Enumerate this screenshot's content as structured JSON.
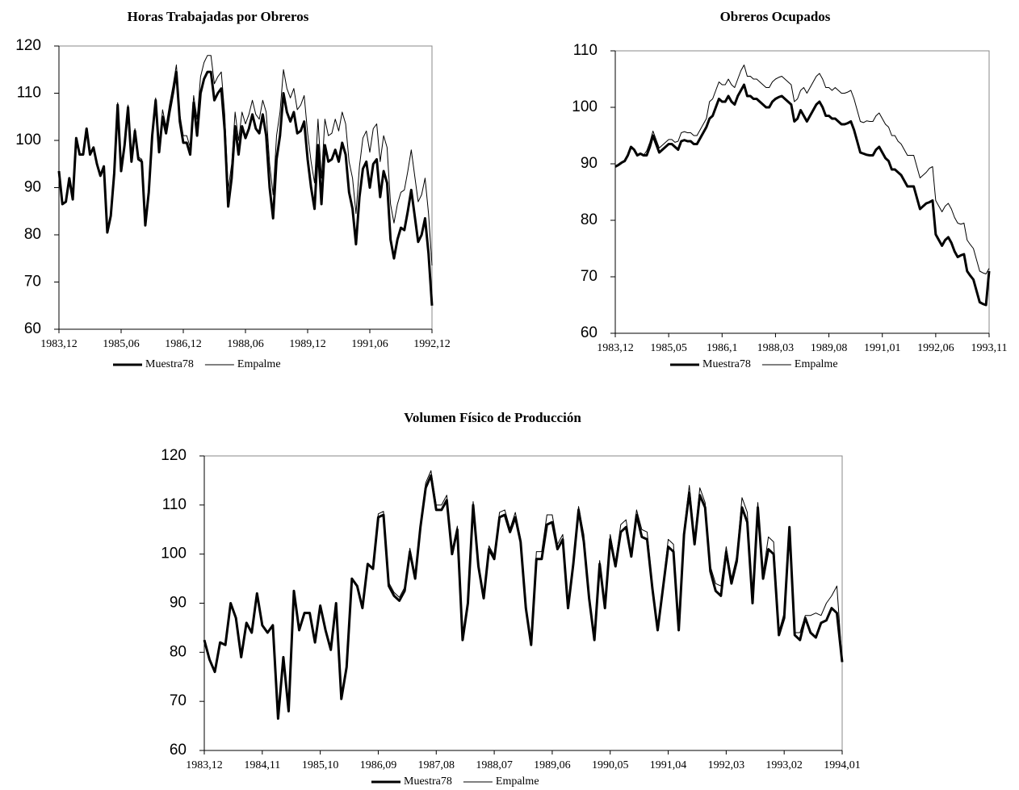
{
  "chart_data": [
    {
      "type": "line",
      "title": "Horas Trabajadas por Obreros",
      "categories": [
        "1983,12",
        null,
        null,
        null,
        null,
        null,
        null,
        null,
        null,
        null,
        null,
        null,
        null,
        null,
        null,
        null,
        null,
        null,
        "1985,06",
        null,
        null,
        null,
        null,
        null,
        null,
        null,
        null,
        null,
        null,
        null,
        null,
        null,
        null,
        null,
        null,
        null,
        "1986,12",
        null,
        null,
        null,
        null,
        null,
        null,
        null,
        null,
        null,
        null,
        null,
        null,
        null,
        null,
        null,
        null,
        null,
        "1988,06",
        null,
        null,
        null,
        null,
        null,
        null,
        null,
        null,
        null,
        null,
        null,
        null,
        null,
        null,
        null,
        null,
        null,
        "1989,12",
        null,
        null,
        null,
        null,
        null,
        null,
        null,
        null,
        null,
        null,
        null,
        null,
        null,
        null,
        null,
        null,
        null,
        "1991,06",
        null,
        null,
        null,
        null,
        null,
        null,
        null,
        null,
        null,
        null,
        null,
        null,
        null,
        null,
        null,
        null,
        null,
        "1992,12"
      ],
      "series": [
        {
          "name": "Muestra78",
          "color": "#000000",
          "width": 3,
          "values": [
            93.5,
            86.5,
            87,
            92,
            87.5,
            100.5,
            97,
            97,
            102.5,
            97,
            98.5,
            95,
            92.5,
            94.5,
            80.5,
            84,
            93,
            107.5,
            93.5,
            99,
            107,
            95.5,
            102,
            96,
            95.5,
            82,
            89,
            101,
            108.5,
            97.5,
            105,
            101.5,
            106,
            110,
            114.5,
            104,
            99.5,
            99.5,
            97,
            108,
            101,
            110,
            113,
            114.5,
            114.5,
            108.5,
            110,
            111,
            102,
            86,
            92,
            103,
            97,
            103,
            100.5,
            102.5,
            105.5,
            102.5,
            101.5,
            105.5,
            101,
            90,
            83.5,
            96,
            101,
            110,
            106,
            104,
            106,
            101.5,
            102,
            104,
            96,
            90,
            85.5,
            99,
            86.5,
            99,
            95.5,
            96,
            98,
            95.5,
            99.5,
            97,
            89,
            85.5,
            78,
            88,
            94,
            95.5,
            90,
            95,
            96,
            88,
            93.5,
            91,
            79,
            75,
            79,
            81.5,
            81,
            85,
            89.5,
            84,
            78.5,
            80,
            83.5,
            76,
            65
          ]
        },
        {
          "name": "Empalme",
          "color": "#000000",
          "width": 1,
          "values": [
            93.5,
            86.5,
            87,
            92,
            87.5,
            100.5,
            97,
            97,
            102.5,
            97,
            98.5,
            95,
            92.5,
            94.5,
            80.5,
            84,
            93.5,
            108,
            94,
            99.5,
            107.5,
            96,
            102.5,
            96.5,
            96,
            82.5,
            89.5,
            101.5,
            109,
            98,
            106.5,
            103,
            107.5,
            111.5,
            116,
            105.5,
            101,
            101,
            98.5,
            109.5,
            104.5,
            113.5,
            116.5,
            118,
            118,
            112,
            113.5,
            114.5,
            105.5,
            89.5,
            95,
            106,
            100,
            106,
            103.5,
            105.5,
            108.5,
            105.5,
            104.5,
            108.5,
            106,
            95,
            88.5,
            101,
            106,
            115,
            111,
            109,
            111,
            106.5,
            107.5,
            109.5,
            101.5,
            95.5,
            91,
            104.5,
            92,
            104.5,
            101,
            101.5,
            104.5,
            102,
            106,
            103.5,
            95.5,
            92,
            84.5,
            94.5,
            100.5,
            102,
            97.5,
            102.5,
            103.5,
            95.5,
            101,
            98.5,
            86.5,
            82.5,
            86.5,
            89,
            89.5,
            93.5,
            98,
            92.5,
            87,
            88.5,
            92,
            84.5,
            73.5
          ]
        }
      ],
      "ylim": [
        60,
        120
      ],
      "yticks": [
        60,
        70,
        80,
        90,
        100,
        110,
        120
      ],
      "grid": false,
      "legend": "bottom"
    },
    {
      "type": "line",
      "title": "Obreros Ocupados",
      "categories": [
        "1983,12",
        null,
        null,
        null,
        null,
        null,
        null,
        null,
        null,
        null,
        null,
        null,
        null,
        null,
        null,
        null,
        null,
        "1985,05",
        null,
        null,
        null,
        null,
        null,
        null,
        null,
        null,
        null,
        null,
        null,
        null,
        null,
        null,
        null,
        null,
        "1986,1",
        null,
        null,
        null,
        null,
        null,
        null,
        null,
        null,
        null,
        null,
        null,
        null,
        null,
        null,
        null,
        null,
        "1988,03",
        null,
        null,
        null,
        null,
        null,
        null,
        null,
        null,
        null,
        null,
        null,
        null,
        null,
        null,
        null,
        null,
        "1989,08",
        null,
        null,
        null,
        null,
        null,
        null,
        null,
        null,
        null,
        null,
        null,
        null,
        null,
        null,
        null,
        null,
        "1991,01",
        null,
        null,
        null,
        null,
        null,
        null,
        null,
        null,
        null,
        null,
        null,
        null,
        null,
        null,
        null,
        null,
        "1992,06",
        null,
        null,
        null,
        null,
        null,
        null,
        null,
        null,
        null,
        null,
        null,
        null,
        null,
        null,
        null,
        null,
        "1993,11"
      ],
      "series": [
        {
          "name": "Muestra78",
          "color": "#000000",
          "width": 3,
          "values": [
            89.5,
            89.8,
            90.2,
            90.5,
            91.5,
            93,
            92.5,
            91.5,
            91.8,
            91.5,
            91.5,
            93,
            95,
            93.5,
            92,
            92.5,
            93,
            93.5,
            93.5,
            93,
            92.5,
            94,
            94.2,
            94,
            94,
            93.5,
            93.5,
            94.5,
            95.5,
            96.5,
            98,
            98.5,
            100,
            101.5,
            101,
            101,
            102,
            101,
            100.5,
            102,
            103,
            104,
            102,
            102,
            101.5,
            101.5,
            101,
            100.5,
            100,
            100,
            101,
            101.5,
            101.8,
            102,
            101.5,
            101,
            100.5,
            97.5,
            98,
            99.5,
            98.5,
            97.5,
            98.5,
            99.5,
            100.5,
            101,
            100,
            98.5,
            98.5,
            98,
            98,
            97.5,
            97,
            97,
            97.2,
            97.5,
            96,
            94,
            92,
            91.8,
            91.6,
            91.5,
            91.5,
            92.5,
            93,
            92,
            91,
            90.5,
            89,
            89,
            88.5,
            88,
            87,
            86,
            86,
            86,
            84,
            82,
            82.5,
            83,
            83.2,
            83.5,
            77.5,
            76.5,
            75.5,
            76.5,
            77,
            76,
            74.5,
            73.5,
            73.8,
            74,
            71,
            70.2,
            69.5,
            67.5,
            65.5,
            65.2,
            65,
            71
          ]
        },
        {
          "name": "Empalme",
          "color": "#000000",
          "width": 1,
          "values": [
            89.5,
            89.8,
            90.2,
            90.5,
            91.5,
            93,
            92.5,
            91.5,
            91.8,
            91.5,
            92.3,
            93.8,
            95.8,
            94.3,
            92.8,
            93.3,
            93.8,
            94.3,
            94.3,
            93.8,
            94,
            95.5,
            95.7,
            95.5,
            95.5,
            95,
            95,
            96,
            97,
            98,
            101,
            101.5,
            103,
            104.5,
            104,
            104,
            105,
            104,
            103.5,
            105,
            106.5,
            107.5,
            105.5,
            105.5,
            105,
            105,
            104.5,
            104,
            103.5,
            103.5,
            104.5,
            105,
            105.3,
            105.5,
            105,
            104.5,
            104,
            101,
            101.5,
            103,
            103.5,
            102.5,
            103.5,
            104.5,
            105.5,
            106,
            105,
            103.5,
            103.5,
            103,
            103.5,
            103,
            102.5,
            102.5,
            102.7,
            103,
            101.5,
            99.5,
            97.5,
            97.3,
            97.6,
            97.5,
            97.5,
            98.5,
            99,
            98,
            97,
            96.5,
            95,
            95,
            94,
            93.5,
            92.5,
            91.5,
            91.5,
            91.5,
            89.5,
            87.5,
            88,
            88.5,
            89.2,
            89.5,
            83.5,
            82.5,
            81.5,
            82.5,
            83,
            82,
            80.5,
            79.5,
            79.3,
            79.5,
            76.5,
            75.7,
            75,
            73,
            71,
            70.7,
            70.5,
            71.5
          ]
        }
      ],
      "ylim": [
        60,
        110
      ],
      "yticks": [
        60,
        70,
        80,
        90,
        100,
        110
      ],
      "grid": false,
      "legend": "bottom"
    },
    {
      "type": "line",
      "title": "Volumen Físico de Producción",
      "categories": [
        "1983,12",
        null,
        null,
        null,
        null,
        null,
        null,
        null,
        null,
        null,
        null,
        "1984,11",
        null,
        null,
        null,
        null,
        null,
        null,
        null,
        null,
        null,
        null,
        "1985,10",
        null,
        null,
        null,
        null,
        null,
        null,
        null,
        null,
        null,
        null,
        "1986,09",
        null,
        null,
        null,
        null,
        null,
        null,
        null,
        null,
        null,
        null,
        "1987,08",
        null,
        null,
        null,
        null,
        null,
        null,
        null,
        null,
        null,
        null,
        "1988,07",
        null,
        null,
        null,
        null,
        null,
        null,
        null,
        null,
        null,
        null,
        "1989,06",
        null,
        null,
        null,
        null,
        null,
        null,
        null,
        null,
        null,
        null,
        "1990,05",
        null,
        null,
        null,
        null,
        null,
        null,
        null,
        null,
        null,
        null,
        "1991,04",
        null,
        null,
        null,
        null,
        null,
        null,
        null,
        null,
        null,
        null,
        "1992,03",
        null,
        null,
        null,
        null,
        null,
        null,
        null,
        null,
        null,
        null,
        "1993,02",
        null,
        null,
        null,
        null,
        null,
        null,
        null,
        null,
        null,
        null,
        "1994,01"
      ],
      "series": [
        {
          "name": "Muestra78",
          "color": "#000000",
          "width": 3,
          "values": [
            82.5,
            78.5,
            76,
            82,
            81.5,
            90,
            87,
            79,
            86,
            84,
            92,
            85.5,
            84,
            85.5,
            66.5,
            79,
            68,
            92.5,
            84.5,
            88,
            88,
            82,
            89.5,
            84.5,
            80.5,
            90,
            70.5,
            77,
            95,
            93.5,
            89,
            98,
            97,
            107.5,
            108,
            93.5,
            91.5,
            90.5,
            92.5,
            100.5,
            95,
            105.5,
            113.5,
            116,
            109,
            109,
            111,
            100,
            105,
            82.5,
            90,
            110,
            97.5,
            91,
            101,
            99,
            107.5,
            108,
            104.5,
            107.5,
            102.5,
            89,
            81.5,
            99,
            99,
            106,
            106.5,
            101,
            103,
            89,
            98,
            109,
            102.5,
            91,
            82.5,
            98,
            89,
            103,
            97.5,
            104.5,
            105.5,
            99.5,
            108,
            103.5,
            103,
            93,
            84.5,
            93,
            101.5,
            100.5,
            84.5,
            104,
            112.5,
            102,
            112,
            109.5,
            96.5,
            92.5,
            91.5,
            100.5,
            94,
            98.5,
            109.5,
            106.5,
            90,
            109.5,
            95,
            101,
            100,
            83.5,
            87,
            105.5,
            83.5,
            82.5,
            87,
            84,
            83,
            86,
            86.5,
            89,
            88,
            78
          ]
        },
        {
          "name": "Empalme",
          "color": "#000000",
          "width": 1,
          "values": [
            82.5,
            78.5,
            76,
            82,
            81.5,
            90,
            87,
            79,
            86,
            84,
            92,
            85.5,
            84,
            85.5,
            66.5,
            79,
            68,
            92.5,
            84.5,
            88,
            88,
            82,
            89.5,
            84.5,
            80.5,
            90,
            70.5,
            77,
            95,
            93.5,
            89,
            98,
            97,
            108.2,
            108.7,
            94.2,
            92.2,
            91.2,
            93.2,
            101.2,
            95.7,
            106.2,
            114.5,
            117,
            110,
            110,
            112,
            100.7,
            105.7,
            83.2,
            90.7,
            110.7,
            98.2,
            91.7,
            101.7,
            99.7,
            108.5,
            109,
            105.2,
            108.5,
            103.2,
            89.7,
            82.2,
            100.5,
            100.5,
            108,
            108,
            102,
            104,
            89.7,
            98.7,
            109.7,
            104,
            91.7,
            83.2,
            98.7,
            89.7,
            104,
            98.2,
            106,
            107,
            100.2,
            109,
            105,
            104.5,
            94,
            85.2,
            93.7,
            103,
            102,
            85.2,
            105,
            114,
            103,
            113.5,
            110.5,
            97.5,
            94,
            93.5,
            101.5,
            95,
            99.5,
            111.5,
            108.5,
            90.7,
            110.5,
            96,
            103.5,
            102.5,
            84.2,
            88,
            105.5,
            84,
            84,
            87.5,
            87.5,
            88,
            87.5,
            90,
            91.5,
            93.5,
            78
          ]
        }
      ],
      "ylim": [
        60,
        120
      ],
      "yticks": [
        60,
        70,
        80,
        90,
        100,
        110,
        120
      ],
      "grid": false,
      "legend": "bottom"
    }
  ]
}
